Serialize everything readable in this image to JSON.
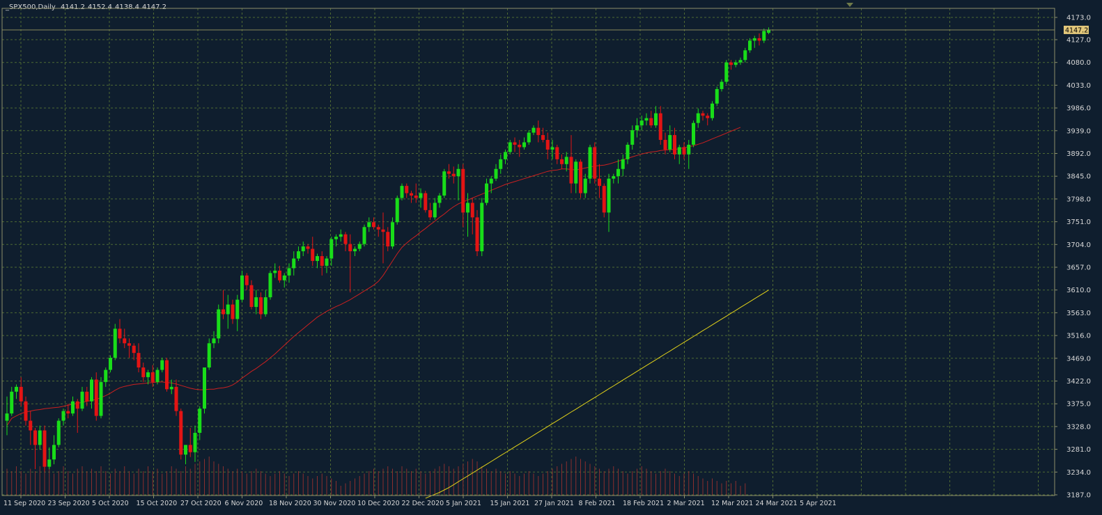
{
  "header": {
    "symbol": "_SPX500,Daily",
    "open": "4141.2",
    "high": "4152.4",
    "low": "4138.4",
    "close": "4147.2"
  },
  "colors": {
    "background": "#0f1e2e",
    "grid": "#4f6a33",
    "frame": "#8c8f6a",
    "bull_candle": "#19dd19",
    "bear_candle": "#e31414",
    "ma_short": "#cc2020",
    "ma_long": "#e2d219",
    "volume": "#8a2f2f",
    "label_text": "#d8d8d8",
    "price_tag_bg": "#e2c77a"
  },
  "chart_data": {
    "type": "candlestick",
    "y_ticks": [
      "4173.0",
      "4127.0",
      "4080.0",
      "4033.0",
      "3986.0",
      "3939.0",
      "3892.0",
      "3845.0",
      "3798.0",
      "3751.0",
      "3704.0",
      "3657.0",
      "3610.0",
      "3563.0",
      "3516.0",
      "3469.0",
      "3422.0",
      "3375.0",
      "3328.0",
      "3281.0",
      "3234.0",
      "3187.0"
    ],
    "ylim": [
      3187,
      4200
    ],
    "current_price": "4147.2",
    "x_labels": [
      "11 Sep 2020",
      "23 Sep 2020",
      "5 Oct 2020",
      "15 Oct 2020",
      "27 Oct 2020",
      "6 Nov 2020",
      "18 Nov 2020",
      "30 Nov 2020",
      "10 Dec 2020",
      "22 Dec 2020",
      "5 Jan 2021",
      "15 Jan 2021",
      "27 Jan 2021",
      "8 Feb 2021",
      "18 Feb 2021",
      "2 Mar 2021",
      "12 Mar 2021",
      "24 Mar 2021",
      "5 Apr 2021"
    ],
    "candles": [
      [
        3340,
        3390,
        3310,
        3355
      ],
      [
        3355,
        3410,
        3350,
        3400
      ],
      [
        3400,
        3415,
        3385,
        3410
      ],
      [
        3410,
        3430,
        3370,
        3380
      ],
      [
        3380,
        3390,
        3330,
        3340
      ],
      [
        3340,
        3360,
        3290,
        3320
      ],
      [
        3320,
        3325,
        3240,
        3290
      ],
      [
        3290,
        3330,
        3280,
        3320
      ],
      [
        3320,
        3330,
        3235,
        3245
      ],
      [
        3245,
        3285,
        3240,
        3260
      ],
      [
        3260,
        3310,
        3250,
        3290
      ],
      [
        3290,
        3345,
        3285,
        3340
      ],
      [
        3340,
        3365,
        3330,
        3360
      ],
      [
        3360,
        3375,
        3345,
        3355
      ],
      [
        3355,
        3390,
        3350,
        3380
      ],
      [
        3380,
        3385,
        3315,
        3365
      ],
      [
        3365,
        3410,
        3360,
        3400
      ],
      [
        3400,
        3410,
        3370,
        3380
      ],
      [
        3380,
        3430,
        3365,
        3425
      ],
      [
        3425,
        3440,
        3340,
        3350
      ],
      [
        3350,
        3430,
        3345,
        3420
      ],
      [
        3420,
        3450,
        3410,
        3445
      ],
      [
        3445,
        3475,
        3440,
        3470
      ],
      [
        3470,
        3540,
        3465,
        3530
      ],
      [
        3530,
        3550,
        3500,
        3510
      ],
      [
        3510,
        3530,
        3490,
        3500
      ],
      [
        3500,
        3510,
        3470,
        3495
      ],
      [
        3495,
        3500,
        3465,
        3480
      ],
      [
        3480,
        3500,
        3440,
        3450
      ],
      [
        3450,
        3460,
        3420,
        3430
      ],
      [
        3430,
        3445,
        3415,
        3440
      ],
      [
        3440,
        3455,
        3410,
        3420
      ],
      [
        3420,
        3450,
        3415,
        3445
      ],
      [
        3445,
        3470,
        3440,
        3465
      ],
      [
        3465,
        3470,
        3400,
        3405
      ],
      [
        3405,
        3425,
        3395,
        3410
      ],
      [
        3410,
        3425,
        3350,
        3360
      ],
      [
        3360,
        3365,
        3260,
        3270
      ],
      [
        3270,
        3290,
        3250,
        3290
      ],
      [
        3290,
        3325,
        3265,
        3275
      ],
      [
        3275,
        3330,
        3255,
        3315
      ],
      [
        3315,
        3370,
        3300,
        3365
      ],
      [
        3365,
        3450,
        3355,
        3450
      ],
      [
        3450,
        3510,
        3445,
        3500
      ],
      [
        3500,
        3525,
        3490,
        3510
      ],
      [
        3510,
        3580,
        3500,
        3570
      ],
      [
        3570,
        3610,
        3550,
        3560
      ],
      [
        3560,
        3600,
        3530,
        3580
      ],
      [
        3580,
        3590,
        3540,
        3550
      ],
      [
        3550,
        3600,
        3525,
        3590
      ],
      [
        3590,
        3650,
        3585,
        3640
      ],
      [
        3640,
        3645,
        3610,
        3620
      ],
      [
        3620,
        3630,
        3570,
        3575
      ],
      [
        3575,
        3610,
        3560,
        3595
      ],
      [
        3595,
        3605,
        3550,
        3560
      ],
      [
        3560,
        3610,
        3555,
        3595
      ],
      [
        3595,
        3650,
        3590,
        3645
      ],
      [
        3645,
        3665,
        3635,
        3650
      ],
      [
        3650,
        3660,
        3625,
        3630
      ],
      [
        3630,
        3645,
        3615,
        3640
      ],
      [
        3640,
        3665,
        3625,
        3655
      ],
      [
        3655,
        3690,
        3640,
        3675
      ],
      [
        3675,
        3700,
        3670,
        3690
      ],
      [
        3690,
        3710,
        3680,
        3700
      ],
      [
        3700,
        3705,
        3685,
        3695
      ],
      [
        3695,
        3720,
        3660,
        3670
      ],
      [
        3670,
        3685,
        3655,
        3680
      ],
      [
        3680,
        3690,
        3640,
        3660
      ],
      [
        3660,
        3680,
        3645,
        3675
      ],
      [
        3675,
        3720,
        3660,
        3715
      ],
      [
        3715,
        3725,
        3700,
        3720
      ],
      [
        3720,
        3735,
        3710,
        3725
      ],
      [
        3725,
        3730,
        3690,
        3705
      ],
      [
        3705,
        3725,
        3605,
        3690
      ],
      [
        3690,
        3700,
        3680,
        3695
      ],
      [
        3695,
        3710,
        3690,
        3705
      ],
      [
        3705,
        3745,
        3700,
        3740
      ],
      [
        3740,
        3760,
        3730,
        3750
      ],
      [
        3750,
        3760,
        3735,
        3740
      ],
      [
        3740,
        3745,
        3720,
        3735
      ],
      [
        3735,
        3770,
        3665,
        3730
      ],
      [
        3730,
        3740,
        3690,
        3700
      ],
      [
        3700,
        3760,
        3695,
        3750
      ],
      [
        3750,
        3805,
        3745,
        3800
      ],
      [
        3800,
        3830,
        3795,
        3825
      ],
      [
        3825,
        3830,
        3800,
        3810
      ],
      [
        3810,
        3815,
        3790,
        3805
      ],
      [
        3805,
        3830,
        3790,
        3800
      ],
      [
        3800,
        3820,
        3780,
        3810
      ],
      [
        3810,
        3815,
        3770,
        3775
      ],
      [
        3775,
        3790,
        3755,
        3760
      ],
      [
        3760,
        3800,
        3755,
        3790
      ],
      [
        3790,
        3810,
        3780,
        3805
      ],
      [
        3805,
        3860,
        3800,
        3855
      ],
      [
        3855,
        3870,
        3840,
        3850
      ],
      [
        3850,
        3865,
        3830,
        3845
      ],
      [
        3845,
        3870,
        3795,
        3860
      ],
      [
        3860,
        3870,
        3740,
        3770
      ],
      [
        3770,
        3810,
        3720,
        3790
      ],
      [
        3790,
        3800,
        3725,
        3760
      ],
      [
        3760,
        3775,
        3680,
        3690
      ],
      [
        3690,
        3800,
        3680,
        3790
      ],
      [
        3790,
        3840,
        3785,
        3830
      ],
      [
        3830,
        3845,
        3810,
        3840
      ],
      [
        3840,
        3870,
        3835,
        3860
      ],
      [
        3860,
        3890,
        3850,
        3880
      ],
      [
        3880,
        3900,
        3870,
        3895
      ],
      [
        3895,
        3920,
        3890,
        3915
      ],
      [
        3915,
        3925,
        3895,
        3910
      ],
      [
        3910,
        3920,
        3885,
        3905
      ],
      [
        3905,
        3925,
        3900,
        3915
      ],
      [
        3915,
        3940,
        3910,
        3935
      ],
      [
        3935,
        3950,
        3930,
        3945
      ],
      [
        3945,
        3960,
        3915,
        3930
      ],
      [
        3930,
        3945,
        3915,
        3920
      ],
      [
        3920,
        3935,
        3880,
        3900
      ],
      [
        3900,
        3920,
        3880,
        3905
      ],
      [
        3905,
        3910,
        3870,
        3880
      ],
      [
        3880,
        3890,
        3860,
        3870
      ],
      [
        3870,
        3895,
        3855,
        3885
      ],
      [
        3885,
        3930,
        3810,
        3830
      ],
      [
        3830,
        3880,
        3810,
        3875
      ],
      [
        3875,
        3880,
        3800,
        3810
      ],
      [
        3810,
        3850,
        3800,
        3840
      ],
      [
        3840,
        3910,
        3830,
        3905
      ],
      [
        3905,
        3915,
        3830,
        3840
      ],
      [
        3840,
        3870,
        3800,
        3825
      ],
      [
        3825,
        3830,
        3760,
        3770
      ],
      [
        3770,
        3850,
        3730,
        3840
      ],
      [
        3840,
        3850,
        3830,
        3845
      ],
      [
        3845,
        3880,
        3830,
        3860
      ],
      [
        3860,
        3890,
        3845,
        3880
      ],
      [
        3880,
        3915,
        3870,
        3910
      ],
      [
        3910,
        3950,
        3900,
        3940
      ],
      [
        3940,
        3965,
        3925,
        3950
      ],
      [
        3950,
        3970,
        3940,
        3960
      ],
      [
        3960,
        3975,
        3950,
        3965
      ],
      [
        3965,
        3980,
        3945,
        3950
      ],
      [
        3950,
        3990,
        3945,
        3975
      ],
      [
        3975,
        3990,
        3910,
        3920
      ],
      [
        3920,
        3935,
        3890,
        3900
      ],
      [
        3900,
        3950,
        3895,
        3930
      ],
      [
        3930,
        3945,
        3880,
        3890
      ],
      [
        3890,
        3910,
        3870,
        3905
      ],
      [
        3905,
        3915,
        3880,
        3890
      ],
      [
        3890,
        3920,
        3860,
        3910
      ],
      [
        3910,
        3960,
        3905,
        3955
      ],
      [
        3955,
        3985,
        3945,
        3975
      ],
      [
        3975,
        3980,
        3960,
        3970
      ],
      [
        3970,
        3975,
        3950,
        3965
      ],
      [
        3965,
        4000,
        3960,
        3995
      ],
      [
        3995,
        4030,
        3990,
        4025
      ],
      [
        4025,
        4045,
        4020,
        4040
      ],
      [
        4040,
        4085,
        4035,
        4080
      ],
      [
        4080,
        4085,
        4065,
        4075
      ],
      [
        4075,
        4085,
        4070,
        4080
      ],
      [
        4080,
        4090,
        4075,
        4085
      ],
      [
        4085,
        4110,
        4080,
        4105
      ],
      [
        4105,
        4130,
        4100,
        4125
      ],
      [
        4125,
        4135,
        4110,
        4130
      ],
      [
        4130,
        4140,
        4115,
        4125
      ],
      [
        4125,
        4150,
        4120,
        4145
      ],
      [
        4141.2,
        4152.4,
        4138.4,
        4147.2
      ]
    ],
    "ma_short_values": [
      3330,
      3345,
      3350,
      3355,
      3358,
      3360,
      3362,
      3363,
      3365,
      3366,
      3367,
      3368,
      3370,
      3372,
      3374,
      3376,
      3378,
      3380,
      3382,
      3384,
      3388,
      3392,
      3397,
      3403,
      3408,
      3411,
      3413,
      3415,
      3416,
      3417,
      3418,
      3419,
      3420,
      3420,
      3419,
      3418,
      3416,
      3413,
      3410,
      3407,
      3405,
      3404,
      3404,
      3405,
      3405,
      3407,
      3408,
      3410,
      3414,
      3420,
      3428,
      3435,
      3442,
      3448,
      3455,
      3462,
      3470,
      3478,
      3487,
      3496,
      3505,
      3514,
      3522,
      3530,
      3538,
      3546,
      3554,
      3560,
      3566,
      3571,
      3576,
      3580,
      3585,
      3590,
      3596,
      3602,
      3608,
      3614,
      3620,
      3628,
      3640,
      3655,
      3670,
      3685,
      3698,
      3707,
      3715,
      3722,
      3730,
      3737,
      3745,
      3752,
      3760,
      3767,
      3775,
      3782,
      3788,
      3792,
      3796,
      3800,
      3804,
      3808,
      3812,
      3816,
      3820,
      3824,
      3828,
      3831,
      3834,
      3837,
      3840,
      3843,
      3846,
      3849,
      3852,
      3855,
      3857,
      3858,
      3860,
      3860,
      3859,
      3858,
      3860,
      3862,
      3864,
      3866,
      3867,
      3868,
      3870,
      3873,
      3876,
      3879,
      3882,
      3885,
      3888,
      3891,
      3893,
      3895,
      3896,
      3898,
      3899,
      3900,
      3900,
      3902,
      3904,
      3906,
      3908,
      3911,
      3914,
      3918,
      3922,
      3926,
      3930,
      3934,
      3938,
      3942,
      3946
    ],
    "ma_long_values": [
      3180,
      3184,
      3188,
      3192,
      3197,
      3202,
      3208,
      3214,
      3220,
      3226,
      3232,
      3238,
      3244,
      3250,
      3256,
      3262,
      3268,
      3274,
      3280,
      3286,
      3292,
      3298,
      3304,
      3310,
      3316,
      3322,
      3328,
      3334,
      3340,
      3346,
      3352,
      3358,
      3364,
      3370,
      3376,
      3382,
      3388,
      3394,
      3400,
      3406,
      3412,
      3418,
      3424,
      3430,
      3436,
      3442,
      3448,
      3454,
      3460,
      3466,
      3472,
      3478,
      3484,
      3490,
      3496,
      3502,
      3508,
      3514,
      3520,
      3526,
      3532,
      3538,
      3544,
      3550,
      3556,
      3562,
      3568,
      3574,
      3580,
      3586,
      3592,
      3598,
      3604,
      3610
    ],
    "volumes": [
      0.55,
      0.5,
      0.6,
      0.5,
      0.45,
      0.55,
      0.5,
      0.6,
      0.5,
      0.55,
      0.45,
      0.5,
      0.6,
      0.5,
      0.45,
      0.55,
      0.6,
      0.5,
      0.55,
      0.5,
      0.6,
      0.5,
      0.45,
      0.55,
      0.5,
      0.6,
      0.5,
      0.45,
      0.55,
      0.5,
      0.6,
      0.5,
      0.55,
      0.45,
      0.5,
      0.6,
      0.55,
      0.5,
      0.6,
      0.55,
      0.65,
      0.7,
      0.75,
      0.8,
      0.7,
      0.65,
      0.6,
      0.55,
      0.5,
      0.55,
      0.5,
      0.45,
      0.5,
      0.55,
      0.5,
      0.45,
      0.4,
      0.45,
      0.5,
      0.45,
      0.4,
      0.45,
      0.5,
      0.45,
      0.4,
      0.35,
      0.4,
      0.45,
      0.4,
      0.35,
      0.3,
      0.2,
      0.25,
      0.3,
      0.35,
      0.4,
      0.45,
      0.5,
      0.55,
      0.5,
      0.55,
      0.6,
      0.55,
      0.5,
      0.6,
      0.55,
      0.5,
      0.55,
      0.5,
      0.45,
      0.5,
      0.55,
      0.6,
      0.65,
      0.6,
      0.55,
      0.6,
      0.65,
      0.7,
      0.75,
      0.7,
      0.6,
      0.55,
      0.5,
      0.55,
      0.5,
      0.45,
      0.5,
      0.45,
      0.4,
      0.45,
      0.5,
      0.45,
      0.4,
      0.45,
      0.5,
      0.55,
      0.6,
      0.65,
      0.7,
      0.75,
      0.8,
      0.75,
      0.7,
      0.65,
      0.6,
      0.55,
      0.5,
      0.55,
      0.6,
      0.55,
      0.5,
      0.45,
      0.5,
      0.55,
      0.6,
      0.55,
      0.5,
      0.45,
      0.5,
      0.55,
      0.5,
      0.45,
      0.4,
      0.45,
      0.5,
      0.45,
      0.4,
      0.35,
      0.3,
      0.35,
      0.3,
      0.25,
      0.3,
      0.25,
      0.3,
      0.2,
      0.25
    ]
  }
}
